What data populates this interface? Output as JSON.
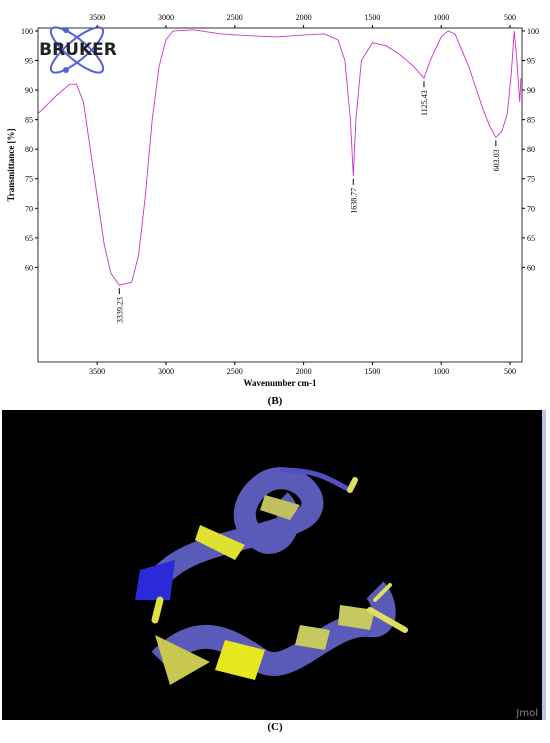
{
  "chart_data": {
    "type": "line",
    "logo": "BRUKER",
    "ylabel": "Transmittance [%]",
    "xlabel": "Wavenumber cm-1",
    "panel_label": "(B)",
    "color": "#cc33cc",
    "xlim": [
      3930,
      413
    ],
    "ylim": [
      44,
      100.5
    ],
    "xticks": [
      3500,
      3000,
      2500,
      2000,
      1500,
      1000,
      500
    ],
    "yticks": [
      60,
      65,
      70,
      75,
      80,
      85,
      90,
      95,
      100
    ],
    "x": [
      3930,
      3800,
      3700,
      3650,
      3600,
      3550,
      3500,
      3450,
      3400,
      3339.23,
      3250,
      3200,
      3150,
      3100,
      3050,
      3000,
      2950,
      2800,
      2600,
      2400,
      2200,
      2000,
      1850,
      1750,
      1700,
      1660,
      1638.77,
      1620,
      1580,
      1500,
      1400,
      1300,
      1200,
      1125.43,
      1080,
      1000,
      950,
      900,
      800,
      700,
      650,
      603.03,
      560,
      520,
      490,
      470,
      450,
      430,
      420
    ],
    "values": [
      86,
      89,
      91,
      91,
      88,
      80,
      72,
      64,
      59,
      57,
      57.5,
      62,
      72,
      85,
      94,
      98.5,
      100,
      100.2,
      99.5,
      99.2,
      99,
      99.3,
      99.5,
      98.5,
      95,
      85,
      75.5,
      85,
      95,
      98,
      97.5,
      96,
      94,
      92,
      95,
      99,
      100,
      99.5,
      94,
      87,
      84,
      82,
      83,
      86,
      93,
      100,
      95,
      88,
      92
    ],
    "peak_labels": [
      3339.23,
      1638.77,
      1125.43,
      603.03
    ],
    "peak_values": [
      57,
      75.5,
      92,
      82
    ]
  },
  "figure": {
    "panel_label": "(C)",
    "watermark": "Jmol"
  }
}
